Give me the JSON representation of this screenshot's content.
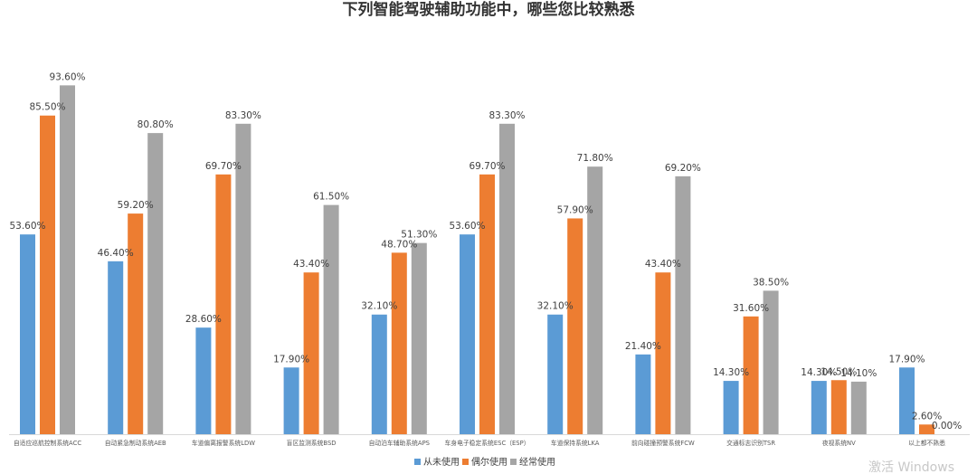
{
  "chart_data": {
    "type": "bar",
    "title": "下列智能驾驶辅助功能中，哪些您比较熟悉",
    "categories": [
      "自适应巡航控制系统ACC",
      "自动紧急制动系统AEB",
      "车道偏离报警系统LDW",
      "盲区监测系统BSD",
      "自动泊车辅助系统APS",
      "车身电子稳定系统ESC（ESP）",
      "车道保持系统LKA",
      "前向碰撞预警系统FCW",
      "交通标志识别TSR",
      "夜视系统NV",
      "以上都不熟悉"
    ],
    "series": [
      {
        "name": "从未使用",
        "color": "#5B9BD5",
        "values": [
          53.6,
          46.4,
          28.6,
          17.9,
          32.1,
          53.6,
          32.1,
          21.4,
          14.3,
          14.3,
          17.9
        ],
        "labels": [
          "53.60%",
          "46.40%",
          "28.60%",
          "17.90%",
          "32.10%",
          "53.60%",
          "32.10%",
          "21.40%",
          "14.30%",
          "14.30%",
          "17.90%"
        ]
      },
      {
        "name": "偶尔使用",
        "color": "#ED7D31",
        "values": [
          85.5,
          59.2,
          69.7,
          43.4,
          48.7,
          69.7,
          57.9,
          43.4,
          31.6,
          14.5,
          2.6
        ],
        "labels": [
          "85.50%",
          "59.20%",
          "69.70%",
          "43.40%",
          "48.70%",
          "69.70%",
          "57.90%",
          "43.40%",
          "31.60%",
          "14.50%",
          "2.60%"
        ]
      },
      {
        "name": "经常使用",
        "color": "#A5A5A5",
        "values": [
          93.6,
          80.8,
          83.3,
          61.5,
          51.3,
          83.3,
          71.8,
          69.2,
          38.5,
          14.1,
          0.0
        ],
        "labels": [
          "93.60%",
          "80.80%",
          "83.30%",
          "61.50%",
          "51.30%",
          "83.30%",
          "71.80%",
          "69.20%",
          "38.50%",
          "14.10%",
          "0.00%"
        ]
      }
    ],
    "ylim": [
      0,
      100
    ],
    "grid": false,
    "legend": "bottom-center"
  },
  "watermark": "激活 Windows"
}
